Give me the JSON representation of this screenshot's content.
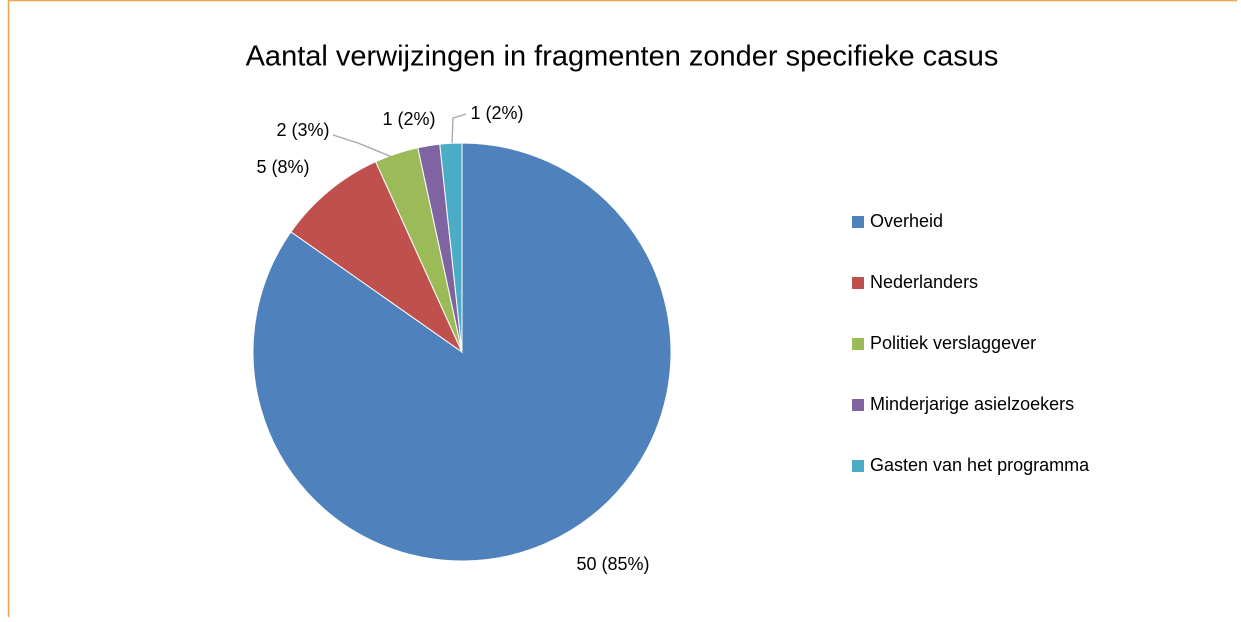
{
  "chart_data": {
    "type": "pie",
    "title": "Aantal verwijzingen in fragmenten zonder specifieke casus",
    "categories": [
      "Overheid",
      "Nederlanders",
      "Politiek verslaggever",
      "Minderjarige asielzoekers",
      "Gasten van het programma"
    ],
    "values": [
      50,
      5,
      2,
      1,
      1
    ],
    "value_labels": [
      "50 (85%)",
      "5 (8%)",
      "2 (3%)",
      "1 (2%)",
      "1 (2%)"
    ],
    "colors": [
      "#4f81bd",
      "#c0504d",
      "#9bbb59",
      "#8064a2",
      "#4bacc6"
    ],
    "legend": "right"
  }
}
